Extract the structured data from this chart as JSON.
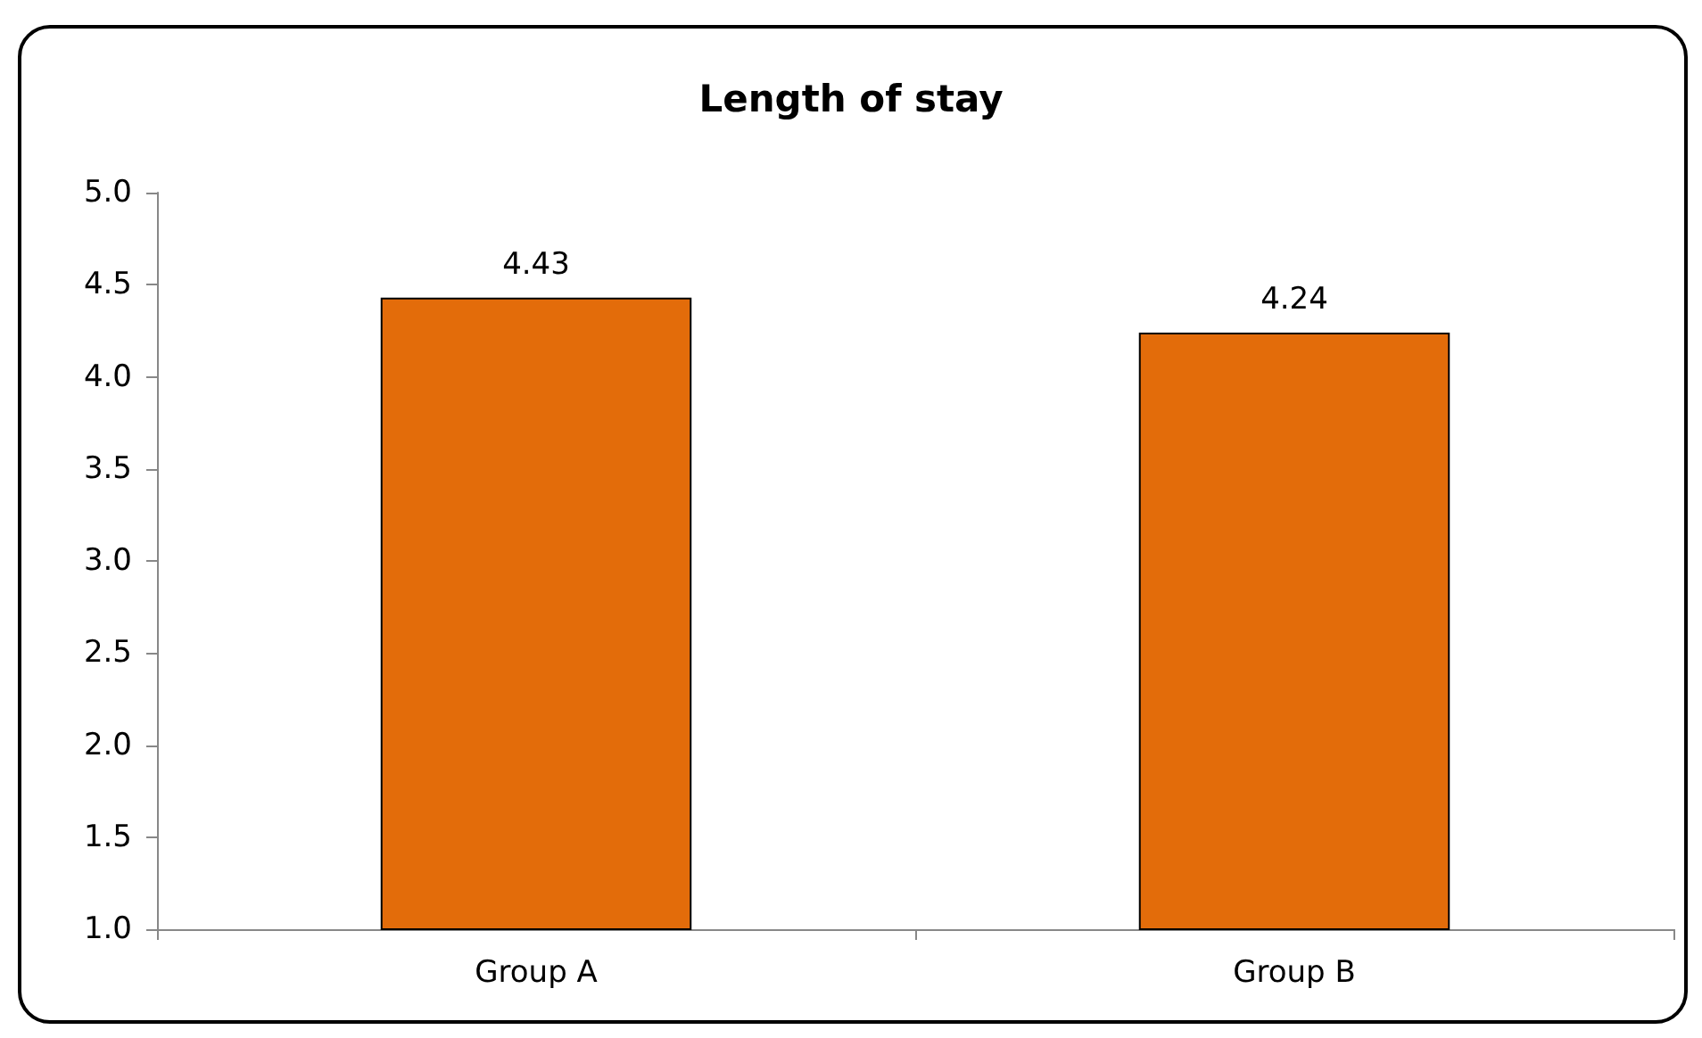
{
  "chart_data": {
    "type": "bar",
    "title": "Length of stay",
    "categories": [
      "Group A",
      "Group B"
    ],
    "values": [
      4.43,
      4.24
    ],
    "color": "#e36c0a",
    "ylim": [
      1,
      5
    ],
    "yticks": [
      {
        "value": 1,
        "label": "1.0"
      },
      {
        "value": 1.5,
        "label": "1.5"
      },
      {
        "value": 2,
        "label": "2.0"
      },
      {
        "value": 2.5,
        "label": "2.5"
      },
      {
        "value": 3,
        "label": "3.0"
      },
      {
        "value": 3.5,
        "label": "3.5"
      },
      {
        "value": 4,
        "label": "4.0"
      },
      {
        "value": 4.5,
        "label": "4.5"
      },
      {
        "value": 5,
        "label": "5.0"
      }
    ],
    "data_labels": true
  }
}
